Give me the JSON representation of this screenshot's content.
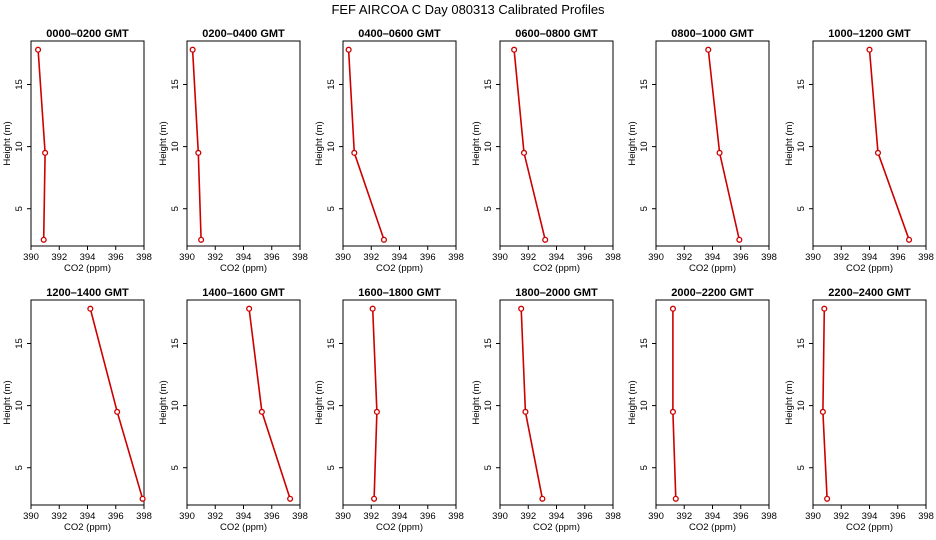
{
  "figure": {
    "title": "FEF AIRCOA C  Day 080313  Calibrated Profiles"
  },
  "chart_data": [
    {
      "type": "line",
      "title": "0000–0200 GMT",
      "xlabel": "CO2 (ppm)",
      "ylabel": "Height (m)",
      "x": [
        390.9,
        391.0,
        390.5
      ],
      "y": [
        2.5,
        9.5,
        17.8
      ],
      "xlim": [
        390,
        398
      ],
      "ylim": [
        2,
        18.5
      ],
      "xticks": [
        "390",
        "392",
        "394",
        "396",
        "398"
      ],
      "yticks": [
        "5",
        "10",
        "15"
      ],
      "color": "#cc0000",
      "grid": false
    },
    {
      "type": "line",
      "title": "0200–0400 GMT",
      "xlabel": "CO2 (ppm)",
      "ylabel": "Height (m)",
      "x": [
        391.0,
        390.8,
        390.4
      ],
      "y": [
        2.5,
        9.5,
        17.8
      ],
      "xlim": [
        390,
        398
      ],
      "ylim": [
        2,
        18.5
      ],
      "xticks": [
        "390",
        "392",
        "394",
        "396",
        "398"
      ],
      "yticks": [
        "5",
        "10",
        "15"
      ],
      "color": "#cc0000",
      "grid": false
    },
    {
      "type": "line",
      "title": "0400–0600 GMT",
      "xlabel": "CO2 (ppm)",
      "ylabel": "Height (m)",
      "x": [
        392.9,
        390.8,
        390.4
      ],
      "y": [
        2.5,
        9.5,
        17.8
      ],
      "xlim": [
        390,
        398
      ],
      "ylim": [
        2,
        18.5
      ],
      "xticks": [
        "390",
        "392",
        "394",
        "396",
        "398"
      ],
      "yticks": [
        "5",
        "10",
        "15"
      ],
      "color": "#cc0000",
      "grid": false
    },
    {
      "type": "line",
      "title": "0600–0800 GMT",
      "xlabel": "CO2 (ppm)",
      "ylabel": "Height (m)",
      "x": [
        393.2,
        391.7,
        391.0
      ],
      "y": [
        2.5,
        9.5,
        17.8
      ],
      "xlim": [
        390,
        398
      ],
      "ylim": [
        2,
        18.5
      ],
      "xticks": [
        "390",
        "392",
        "394",
        "396",
        "398"
      ],
      "yticks": [
        "5",
        "10",
        "15"
      ],
      "color": "#cc0000",
      "grid": false
    },
    {
      "type": "line",
      "title": "0800–1000 GMT",
      "xlabel": "CO2 (ppm)",
      "ylabel": "Height (m)",
      "x": [
        395.9,
        394.5,
        393.7
      ],
      "y": [
        2.5,
        9.5,
        17.8
      ],
      "xlim": [
        390,
        398
      ],
      "ylim": [
        2,
        18.5
      ],
      "xticks": [
        "390",
        "392",
        "394",
        "396",
        "398"
      ],
      "yticks": [
        "5",
        "10",
        "15"
      ],
      "color": "#cc0000",
      "grid": false
    },
    {
      "type": "line",
      "title": "1000–1200 GMT",
      "xlabel": "CO2 (ppm)",
      "ylabel": "Height (m)",
      "x": [
        396.8,
        394.6,
        394.0
      ],
      "y": [
        2.5,
        9.5,
        17.8
      ],
      "xlim": [
        390,
        398
      ],
      "ylim": [
        2,
        18.5
      ],
      "xticks": [
        "390",
        "392",
        "394",
        "396",
        "398"
      ],
      "yticks": [
        "5",
        "10",
        "15"
      ],
      "color": "#cc0000",
      "grid": false
    },
    {
      "type": "line",
      "title": "1200–1400 GMT",
      "xlabel": "CO2 (ppm)",
      "ylabel": "Height (m)",
      "x": [
        397.9,
        396.1,
        394.2
      ],
      "y": [
        2.5,
        9.5,
        17.8
      ],
      "xlim": [
        390,
        398
      ],
      "ylim": [
        2,
        18.5
      ],
      "xticks": [
        "390",
        "392",
        "394",
        "396",
        "398"
      ],
      "yticks": [
        "5",
        "10",
        "15"
      ],
      "color": "#cc0000",
      "grid": false
    },
    {
      "type": "line",
      "title": "1400–1600 GMT",
      "xlabel": "CO2 (ppm)",
      "ylabel": "Height (m)",
      "x": [
        397.3,
        395.3,
        394.4
      ],
      "y": [
        2.5,
        9.5,
        17.8
      ],
      "xlim": [
        390,
        398
      ],
      "ylim": [
        2,
        18.5
      ],
      "xticks": [
        "390",
        "392",
        "394",
        "396",
        "398"
      ],
      "yticks": [
        "5",
        "10",
        "15"
      ],
      "color": "#cc0000",
      "grid": false
    },
    {
      "type": "line",
      "title": "1600–1800 GMT",
      "xlabel": "CO2 (ppm)",
      "ylabel": "Height (m)",
      "x": [
        392.2,
        392.4,
        392.1
      ],
      "y": [
        2.5,
        9.5,
        17.8
      ],
      "xlim": [
        390,
        398
      ],
      "ylim": [
        2,
        18.5
      ],
      "xticks": [
        "390",
        "392",
        "394",
        "396",
        "398"
      ],
      "yticks": [
        "5",
        "10",
        "15"
      ],
      "color": "#cc0000",
      "grid": false
    },
    {
      "type": "line",
      "title": "1800–2000 GMT",
      "xlabel": "CO2 (ppm)",
      "ylabel": "Height (m)",
      "x": [
        393.0,
        391.8,
        391.5
      ],
      "y": [
        2.5,
        9.5,
        17.8
      ],
      "xlim": [
        390,
        398
      ],
      "ylim": [
        2,
        18.5
      ],
      "xticks": [
        "390",
        "392",
        "394",
        "396",
        "398"
      ],
      "yticks": [
        "5",
        "10",
        "15"
      ],
      "color": "#cc0000",
      "grid": false
    },
    {
      "type": "line",
      "title": "2000–2200 GMT",
      "xlabel": "CO2 (ppm)",
      "ylabel": "Height (m)",
      "x": [
        391.4,
        391.2,
        391.2
      ],
      "y": [
        2.5,
        9.5,
        17.8
      ],
      "xlim": [
        390,
        398
      ],
      "ylim": [
        2,
        18.5
      ],
      "xticks": [
        "390",
        "392",
        "394",
        "396",
        "398"
      ],
      "yticks": [
        "5",
        "10",
        "15"
      ],
      "color": "#cc0000",
      "grid": false
    },
    {
      "type": "line",
      "title": "2200–2400 GMT",
      "xlabel": "CO2 (ppm)",
      "ylabel": "Height (m)",
      "x": [
        391.0,
        390.7,
        390.8
      ],
      "y": [
        2.5,
        9.5,
        17.8
      ],
      "xlim": [
        390,
        398
      ],
      "ylim": [
        2,
        18.5
      ],
      "xticks": [
        "390",
        "392",
        "394",
        "396",
        "398"
      ],
      "yticks": [
        "5",
        "10",
        "15"
      ],
      "color": "#cc0000",
      "grid": false
    }
  ]
}
